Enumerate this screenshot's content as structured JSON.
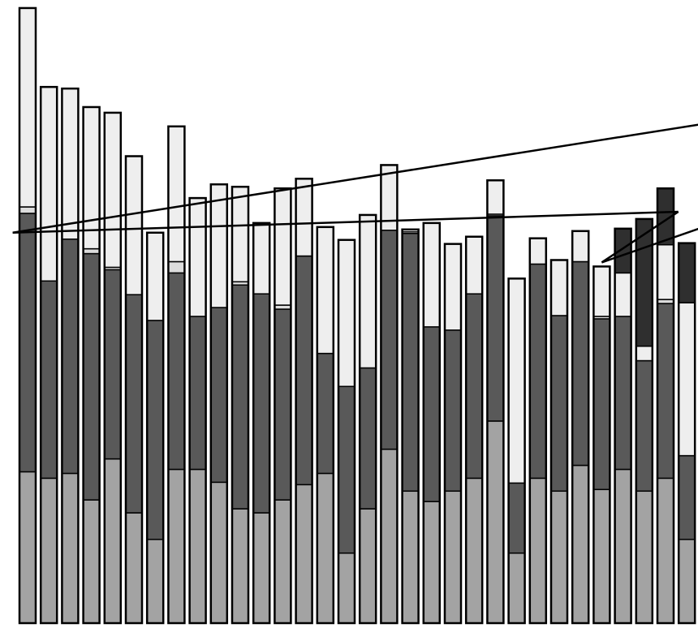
{
  "chart_data": {
    "type": "bar",
    "stacked": true,
    "title": "",
    "xlabel": "",
    "ylabel": "",
    "ylim": [
      0,
      774
    ],
    "grid": false,
    "colors": {
      "series_a": "#a3a3a3",
      "series_b": "#595959",
      "series_c": "#eeeeee",
      "series_d": "#dcdcdc",
      "series_e": "#2f2f2f",
      "outline": "#000000"
    },
    "segment_order": [
      "series_a",
      "series_b",
      "series_d",
      "series_c",
      "series_e"
    ],
    "bars": [
      {
        "series_a": 188,
        "series_b": 321,
        "series_d": 8,
        "series_c": 247,
        "series_e": 0
      },
      {
        "series_a": 180,
        "series_b": 245,
        "series_d": 0,
        "series_c": 241,
        "series_e": 0
      },
      {
        "series_a": 186,
        "series_b": 291,
        "series_d": 0,
        "series_c": 187,
        "series_e": 0
      },
      {
        "series_a": 153,
        "series_b": 306,
        "series_d": 6,
        "series_c": 176,
        "series_e": 0
      },
      {
        "series_a": 204,
        "series_b": 235,
        "series_d": 3,
        "series_c": 192,
        "series_e": 0
      },
      {
        "series_a": 137,
        "series_b": 271,
        "series_d": 0,
        "series_c": 172,
        "series_e": 0
      },
      {
        "series_a": 104,
        "series_b": 272,
        "series_d": 0,
        "series_c": 109,
        "series_e": 0
      },
      {
        "series_a": 191,
        "series_b": 244,
        "series_d": 14,
        "series_c": 168,
        "series_e": 0
      },
      {
        "series_a": 191,
        "series_b": 190,
        "series_d": 0,
        "series_c": 147,
        "series_e": 0
      },
      {
        "series_a": 175,
        "series_b": 217,
        "series_d": 0,
        "series_c": 153,
        "series_e": 0
      },
      {
        "series_a": 142,
        "series_b": 278,
        "series_d": 4,
        "series_c": 118,
        "series_e": 0
      },
      {
        "series_a": 137,
        "series_b": 272,
        "series_d": 0,
        "series_c": 88,
        "series_e": 0
      },
      {
        "series_a": 153,
        "series_b": 237,
        "series_d": 5,
        "series_c": 145,
        "series_e": 0
      },
      {
        "series_a": 172,
        "series_b": 284,
        "series_d": 0,
        "series_c": 96,
        "series_e": 0
      },
      {
        "series_a": 186,
        "series_b": 149,
        "series_d": 0,
        "series_c": 157,
        "series_e": 0
      },
      {
        "series_a": 87,
        "series_b": 207,
        "series_d": 0,
        "series_c": 182,
        "series_e": 0
      },
      {
        "series_a": 142,
        "series_b": 175,
        "series_d": 0,
        "series_c": 190,
        "series_e": 0
      },
      {
        "series_a": 216,
        "series_b": 272,
        "series_d": 0,
        "series_c": 81,
        "series_e": 0
      },
      {
        "series_a": 164,
        "series_b": 320,
        "series_d": 2,
        "series_c": 3,
        "series_e": 0
      },
      {
        "series_a": 151,
        "series_b": 217,
        "series_d": 0,
        "series_c": 129,
        "series_e": 0
      },
      {
        "series_a": 164,
        "series_b": 200,
        "series_d": 0,
        "series_c": 107,
        "series_e": 0
      },
      {
        "series_a": 180,
        "series_b": 229,
        "series_d": 0,
        "series_c": 71,
        "series_e": 0
      },
      {
        "series_a": 251,
        "series_b": 255,
        "series_d": 2,
        "series_c": 42,
        "series_e": 0
      },
      {
        "series_a": 87,
        "series_b": 87,
        "series_d": 0,
        "series_c": 254,
        "series_e": 0
      },
      {
        "series_a": 180,
        "series_b": 266,
        "series_d": 0,
        "series_c": 32,
        "series_e": 0
      },
      {
        "series_a": 164,
        "series_b": 218,
        "series_d": 0,
        "series_c": 69,
        "series_e": 0
      },
      {
        "series_a": 196,
        "series_b": 253,
        "series_d": 0,
        "series_c": 38,
        "series_e": 0
      },
      {
        "series_a": 166,
        "series_b": 212,
        "series_d": 3,
        "series_c": 62,
        "series_e": 0
      },
      {
        "series_a": 191,
        "series_b": 190,
        "series_d": 0,
        "series_c": 54,
        "series_e": 55
      },
      {
        "series_a": 164,
        "series_b": 162,
        "series_d": 0,
        "series_c": 18,
        "series_e": 158
      },
      {
        "series_a": 180,
        "series_b": 217,
        "series_d": 5,
        "series_c": 68,
        "series_e": 70
      },
      {
        "series_a": 104,
        "series_b": 104,
        "series_d": 0,
        "series_c": 190,
        "series_e": 74
      }
    ],
    "trend_lines": [
      {
        "points": [
          [
            -0.7,
            485
          ],
          [
            32.0,
            621
          ]
        ]
      },
      {
        "points": [
          [
            -0.7,
            485
          ],
          [
            30.6,
            511
          ]
        ]
      },
      {
        "points": [
          [
            27.0,
            448
          ],
          [
            30.6,
            511
          ]
        ]
      },
      {
        "points": [
          [
            27.0,
            448
          ],
          [
            32.0,
            494
          ]
        ]
      }
    ]
  }
}
